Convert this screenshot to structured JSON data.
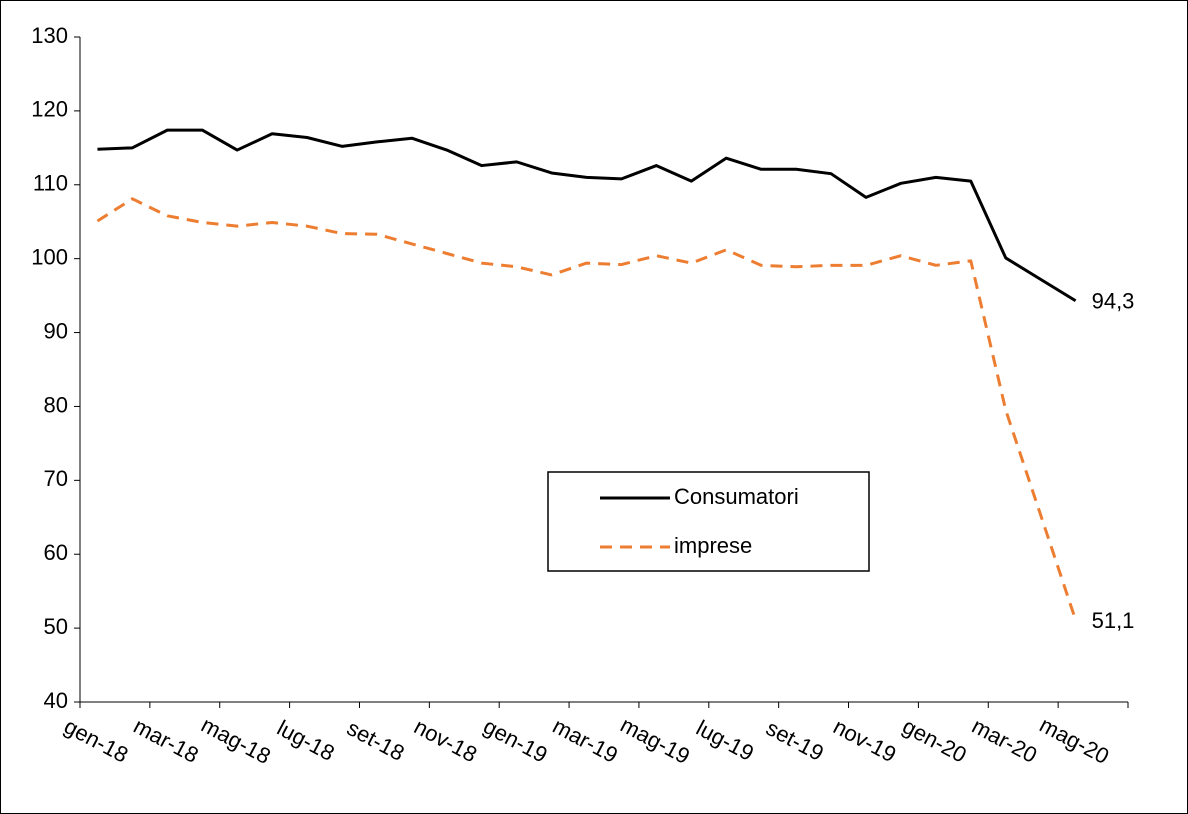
{
  "chart_data": {
    "type": "line",
    "categories": [
      "gen-18",
      null,
      "mar-18",
      null,
      "mag-18",
      null,
      "lug-18",
      null,
      "set-18",
      null,
      "nov-18",
      null,
      "gen-19",
      null,
      "mar-19",
      null,
      "mag-19",
      null,
      "lug-19",
      null,
      "set-19",
      null,
      "nov-19",
      null,
      "gen-20",
      null,
      "mar-20",
      null,
      "mag-20",
      null
    ],
    "series": [
      {
        "name": "Consumatori",
        "color": "#000000",
        "dash": false,
        "values": [
          114.8,
          115.0,
          117.4,
          117.4,
          114.7,
          116.9,
          116.4,
          115.2,
          115.8,
          116.3,
          114.7,
          112.6,
          113.1,
          111.6,
          111.0,
          110.8,
          112.6,
          110.5,
          113.6,
          112.1,
          112.1,
          111.5,
          108.3,
          110.2,
          111.0,
          110.5,
          100.1,
          97.2,
          94.3,
          null
        ],
        "value_labels": [
          null,
          null,
          null,
          null,
          null,
          null,
          null,
          null,
          null,
          null,
          null,
          null,
          null,
          null,
          null,
          null,
          null,
          null,
          null,
          null,
          null,
          null,
          null,
          null,
          null,
          null,
          null,
          null,
          "94,3",
          null
        ]
      },
      {
        "name": "imprese",
        "color": "#ed7d31",
        "dash": true,
        "values": [
          105.1,
          108.1,
          105.8,
          104.9,
          104.4,
          104.9,
          104.4,
          103.4,
          103.3,
          102.0,
          100.7,
          99.4,
          98.9,
          97.8,
          99.4,
          99.2,
          100.4,
          99.4,
          101.2,
          99.1,
          98.9,
          99.1,
          99.1,
          100.4,
          99.1,
          99.7,
          79.5,
          65.3,
          51.1,
          null
        ],
        "value_labels": [
          null,
          null,
          null,
          null,
          null,
          null,
          null,
          null,
          null,
          null,
          null,
          null,
          null,
          null,
          null,
          null,
          null,
          null,
          null,
          null,
          null,
          null,
          null,
          null,
          null,
          null,
          null,
          null,
          "51,1",
          null
        ]
      }
    ],
    "ylim": [
      40,
      130
    ],
    "yticks": [
      40,
      50,
      60,
      70,
      80,
      90,
      100,
      110,
      120,
      130
    ],
    "grid": false,
    "legend": "center"
  }
}
